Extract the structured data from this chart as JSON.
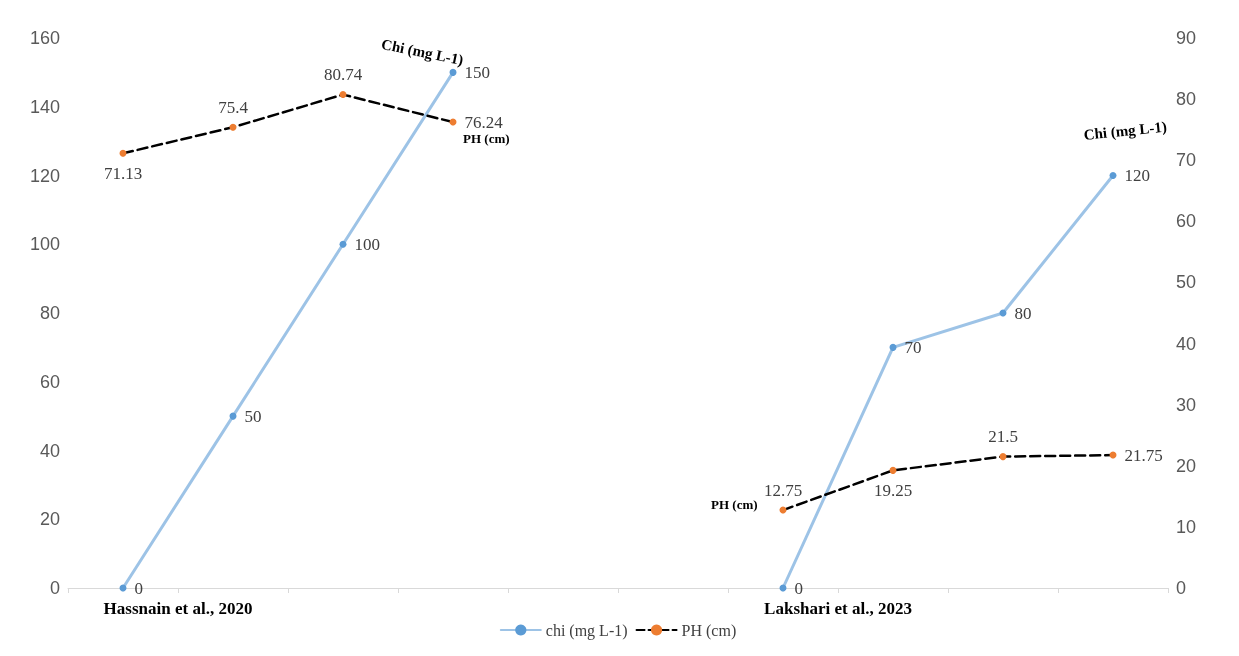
{
  "chart_data": {
    "type": "line",
    "categories": [
      null,
      null,
      null,
      null,
      null,
      null,
      null,
      null,
      null,
      null
    ],
    "series": [
      {
        "name": "chi (mg L-1)",
        "color": "#5b9bd5",
        "values": [
          0,
          50,
          100,
          150,
          null,
          null,
          0,
          70,
          80,
          120
        ]
      },
      {
        "name": "PH (cm)",
        "color": "#ed7d31",
        "axis": "y2",
        "line_style": "dashed",
        "values": [
          71.13,
          75.4,
          80.74,
          76.24,
          null,
          null,
          12.75,
          19.25,
          21.5,
          21.75
        ]
      }
    ],
    "ylim": [
      0,
      160
    ],
    "yticks": [
      0,
      20,
      40,
      60,
      80,
      100,
      120,
      140,
      160
    ],
    "y2lim": [
      0,
      90
    ],
    "y2ticks": [
      0,
      10,
      20,
      30,
      40,
      50,
      60,
      70,
      80,
      90
    ],
    "data_labels": true,
    "grid": false,
    "legend": "bottom",
    "marker": "circle",
    "line_style": "solid",
    "annotations": [
      "Hassnain et al., 2020",
      "Lakshari et al., 2023",
      "Chi (mg L-1)",
      "PH (cm)",
      "Chi (mg L-1)",
      "PH (cm)"
    ]
  }
}
